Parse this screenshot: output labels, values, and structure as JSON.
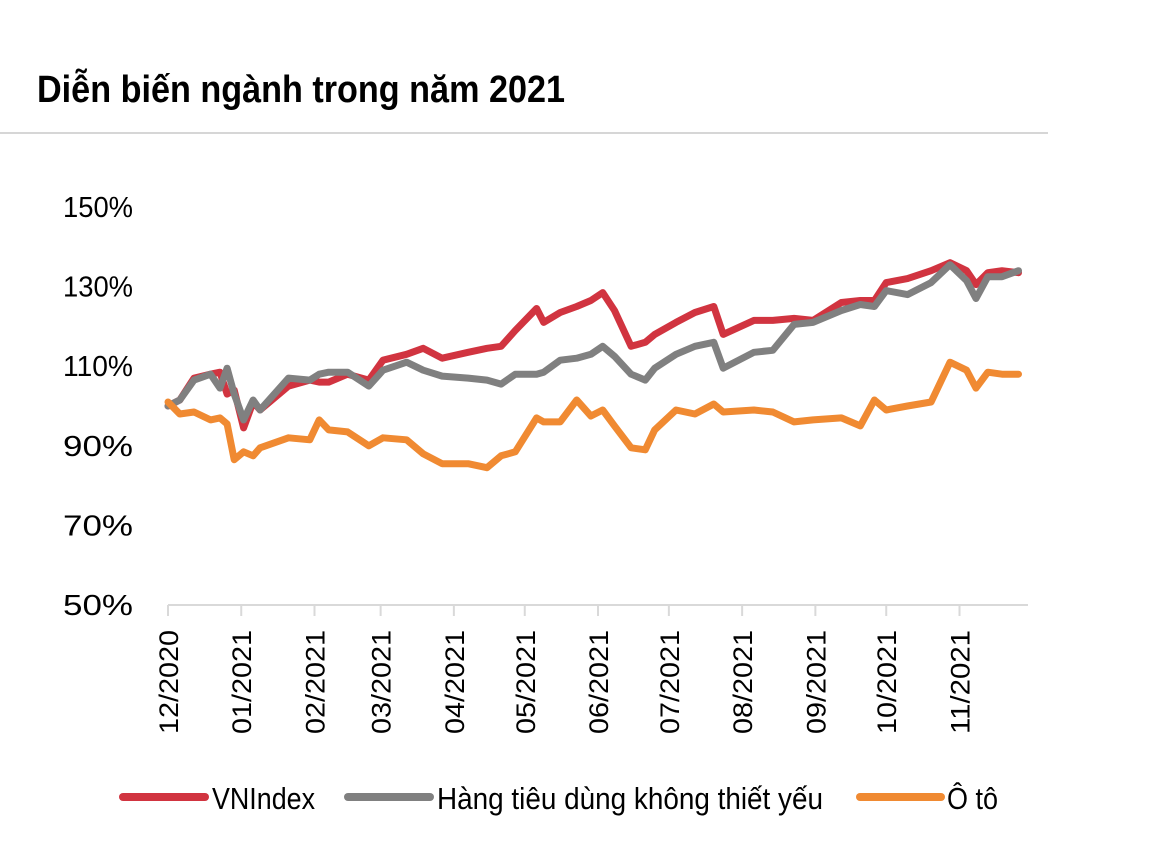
{
  "chart_data": {
    "type": "line",
    "title": "Diễn biến ngành trong năm 2021",
    "xlabel": "",
    "ylabel": "",
    "ylim": [
      50,
      150
    ],
    "xlim": [
      "2020-12-01",
      "2021-11-30"
    ],
    "yticks": [
      "150%",
      "130%",
      "110%",
      "90%",
      "70%",
      "50%"
    ],
    "ytick_values": [
      150,
      130,
      110,
      90,
      70,
      50
    ],
    "xticks": [
      "12/2020",
      "01/2021",
      "02/2021",
      "03/2021",
      "04/2021",
      "05/2021",
      "06/2021",
      "07/2021",
      "08/2021",
      "09/2021",
      "10/2021",
      "11/2021"
    ],
    "xtick_dates": [
      "2020-12-01",
      "2021-01-01",
      "2021-02-01",
      "2021-03-01",
      "2021-04-01",
      "2021-05-01",
      "2021-06-01",
      "2021-07-01",
      "2021-08-01",
      "2021-09-01",
      "2021-10-01",
      "2021-11-01"
    ],
    "grid": false,
    "legend": "bottom",
    "x": [
      "2020-12-01",
      "2020-12-06",
      "2020-12-12",
      "2020-12-19",
      "2020-12-23",
      "2020-12-26",
      "2020-12-29",
      "2021-01-02",
      "2021-01-06",
      "2021-01-09",
      "2021-01-21",
      "2021-01-30",
      "2021-02-03",
      "2021-02-07",
      "2021-02-15",
      "2021-02-24",
      "2021-03-02",
      "2021-03-12",
      "2021-03-19",
      "2021-03-27",
      "2021-04-07",
      "2021-04-15",
      "2021-04-21",
      "2021-04-27",
      "2021-05-06",
      "2021-05-09",
      "2021-05-16",
      "2021-05-23",
      "2021-05-29",
      "2021-06-03",
      "2021-06-08",
      "2021-06-15",
      "2021-06-21",
      "2021-06-25",
      "2021-07-04",
      "2021-07-12",
      "2021-07-20",
      "2021-07-24",
      "2021-08-06",
      "2021-08-14",
      "2021-08-23",
      "2021-08-31",
      "2021-09-12",
      "2021-09-20",
      "2021-09-26",
      "2021-10-01",
      "2021-10-10",
      "2021-10-20",
      "2021-10-28",
      "2021-11-04",
      "2021-11-08",
      "2021-11-13",
      "2021-11-19",
      "2021-11-26"
    ],
    "series": [
      {
        "name": "VNIndex",
        "color": "#d13440",
        "values": [
          100,
          101.5,
          107,
          108,
          108.5,
          103,
          104,
          94.5,
          101,
          99,
          105,
          106.5,
          106,
          106,
          108,
          106.5,
          111.5,
          113,
          114.5,
          112,
          113.5,
          114.5,
          115,
          119,
          124.5,
          121,
          123.5,
          125,
          126.5,
          128.5,
          124,
          115,
          116,
          118,
          121,
          123.5,
          125,
          118,
          121.5,
          121.5,
          122,
          121.5,
          126,
          126.5,
          126.5,
          131,
          132,
          134,
          136,
          134,
          130.5,
          133.5,
          134,
          133.5
        ]
      },
      {
        "name": "Hàng tiêu dùng không thiết yếu",
        "color": "#808080",
        "values": [
          100,
          101.5,
          106.5,
          108,
          104.5,
          109.5,
          103,
          96.5,
          101.5,
          99,
          107,
          106.5,
          108,
          108.5,
          108.5,
          105,
          109,
          111,
          109,
          107.5,
          107,
          106.5,
          105.5,
          108,
          108,
          108.5,
          111.5,
          112,
          113,
          115,
          112.5,
          108,
          106.5,
          109.5,
          113,
          115,
          116,
          109.5,
          113.5,
          114,
          120.5,
          121,
          124,
          125.5,
          125,
          129,
          128,
          131,
          135.5,
          131.5,
          127,
          132.5,
          132.5,
          134
        ]
      },
      {
        "name": "Ô tô",
        "color": "#f08a32",
        "values": [
          101,
          98,
          98.5,
          96.5,
          97,
          95.5,
          86.5,
          88.5,
          87.5,
          89.5,
          92,
          91.5,
          96.5,
          94,
          93.5,
          90,
          92,
          91.5,
          88,
          85.5,
          85.5,
          84.5,
          87.5,
          88.5,
          97,
          96,
          96,
          101.5,
          97.5,
          99,
          95,
          89.5,
          89,
          94,
          99,
          98,
          100.5,
          98.5,
          99,
          98.5,
          96,
          96.5,
          97,
          95,
          101.5,
          99,
          100,
          101,
          111,
          109,
          104.5,
          108.5,
          108,
          108
        ]
      }
    ]
  }
}
